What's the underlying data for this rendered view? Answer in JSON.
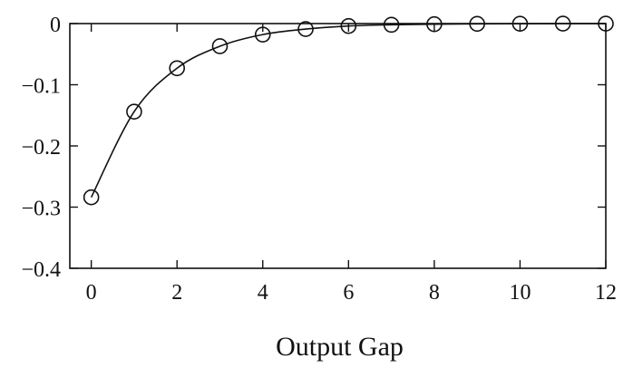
{
  "chart_data": {
    "type": "line",
    "title": "",
    "xlabel": "Output Gap",
    "ylabel": "",
    "xlim": [
      -0.5,
      12
    ],
    "ylim": [
      -0.4,
      0
    ],
    "x_ticks": [
      0,
      2,
      4,
      6,
      8,
      10,
      12
    ],
    "y_ticks": [
      0,
      -0.1,
      -0.2,
      -0.3,
      -0.4
    ],
    "x_tick_labels": [
      "0",
      "2",
      "4",
      "6",
      "8",
      "10",
      "12"
    ],
    "y_tick_labels": [
      "0",
      "−0.1",
      "−0.2",
      "−0.3",
      "−0.4"
    ],
    "grid": false,
    "legend": "none",
    "series": [
      {
        "marker": "open-circle",
        "line": "solid",
        "color": "#111111",
        "x": [
          0,
          1,
          2,
          3,
          4,
          5,
          6,
          7,
          8,
          9,
          10,
          11,
          12
        ],
        "values": [
          -0.284,
          -0.144,
          -0.073,
          -0.037,
          -0.018,
          -0.009,
          -0.004,
          -0.002,
          -0.001,
          -0.0005,
          -0.0003,
          -0.0001,
          -0.0001
        ]
      }
    ]
  }
}
